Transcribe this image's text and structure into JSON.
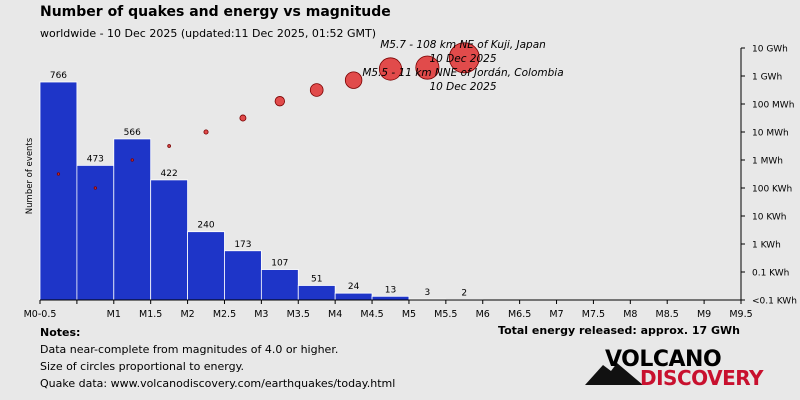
{
  "header": {
    "title": "Number of quakes and energy vs magnitude",
    "subtitle": "worldwide - 10 Dec 2025 (updated:11 Dec 2025, 01:52 GMT)"
  },
  "chart_data": {
    "type": "bar",
    "ylabel": "Number of events",
    "categories": [
      "M0-0.5",
      "",
      "M1",
      "M1.5",
      "M2",
      "M2.5",
      "M3",
      "M3.5",
      "M4",
      "M4.5",
      "M5",
      "M5.5",
      "M6",
      "M6.5",
      "M7",
      "M7.5",
      "M8",
      "M8.5",
      "M9",
      "M9.5"
    ],
    "bins": [
      {
        "from": 0.0,
        "to": 0.5,
        "count": 766
      },
      {
        "from": 0.5,
        "to": 1.0,
        "count": 473
      },
      {
        "from": 1.0,
        "to": 1.5,
        "count": 566
      },
      {
        "from": 1.5,
        "to": 2.0,
        "count": 422
      },
      {
        "from": 2.0,
        "to": 2.5,
        "count": 240
      },
      {
        "from": 2.5,
        "to": 3.0,
        "count": 173
      },
      {
        "from": 3.0,
        "to": 3.5,
        "count": 107
      },
      {
        "from": 3.5,
        "to": 4.0,
        "count": 51
      },
      {
        "from": 4.0,
        "to": 4.5,
        "count": 24
      },
      {
        "from": 4.5,
        "to": 5.0,
        "count": 13
      },
      {
        "from": 5.0,
        "to": 5.5,
        "count": 3
      },
      {
        "from": 5.5,
        "to": 6.0,
        "count": 2
      }
    ],
    "ylim": [
      0,
      766
    ],
    "energy_axis_labels": [
      "10 GWh",
      "1 GWh",
      "100 MWh",
      "10 MWh",
      "1 MWh",
      "100 KWh",
      "10 KWh",
      "1 KWh",
      "0.1 KWh",
      "<0.1 KWh"
    ],
    "energy_axis_log10_kwh": [
      7,
      6,
      5,
      4,
      3,
      2,
      1,
      0,
      -1,
      -2
    ],
    "energy_points": [
      {
        "mag": 0.25,
        "log10_kwh": 2.5
      },
      {
        "mag": 0.75,
        "log10_kwh": 2.0
      },
      {
        "mag": 1.25,
        "log10_kwh": 3.0
      },
      {
        "mag": 1.75,
        "log10_kwh": 3.5
      },
      {
        "mag": 2.25,
        "log10_kwh": 4.0
      },
      {
        "mag": 2.75,
        "log10_kwh": 4.5
      },
      {
        "mag": 3.25,
        "log10_kwh": 5.1
      },
      {
        "mag": 3.75,
        "log10_kwh": 5.5
      },
      {
        "mag": 4.25,
        "log10_kwh": 5.85
      },
      {
        "mag": 4.75,
        "log10_kwh": 6.25
      },
      {
        "mag": 5.25,
        "log10_kwh": 6.3
      },
      {
        "mag": 5.75,
        "log10_kwh": 6.65
      }
    ],
    "annotations": [
      {
        "line1": "M5.7 - 108 km NE of Kuji, Japan",
        "line2": "10 Dec 2025"
      },
      {
        "line1": "M5.5 - 11 km NNE of Jordán, Colombia",
        "line2": "10 Dec 2025"
      }
    ],
    "colors": {
      "bar": "#1e35c8",
      "bar_last": "#4a5ee0",
      "circle": "#e03a3a",
      "circle_stroke": "#7a0000",
      "axis": "#000000"
    }
  },
  "notes": {
    "title": "Notes:",
    "lines": [
      "Data near-complete from magnitudes of 4.0 or higher.",
      "Size of circles proportional to energy.",
      "Quake data: www.volcanodiscovery.com/earthquakes/today.html"
    ]
  },
  "total_energy": "Total energy released: approx. 17 GWh",
  "logo": {
    "word1": "VOLCANO",
    "word2": "DISCOVERY",
    "colors": {
      "word1": "#000000",
      "word2": "#c8102e"
    }
  }
}
